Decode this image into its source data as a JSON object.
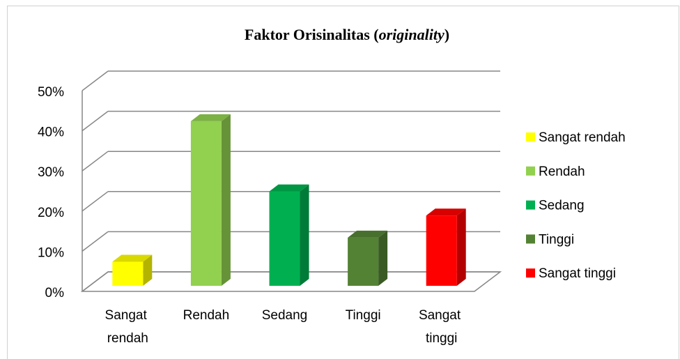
{
  "chart_data": {
    "type": "bar3d",
    "title": "Faktor Orisinalitas (originality)",
    "categories": [
      "Sangat rendah",
      "Rendah",
      "Sedang",
      "Tinggi",
      "Sangat tinggi"
    ],
    "values": [
      6,
      41,
      23.5,
      12,
      17.5
    ],
    "colors": [
      "#ffff00",
      "#92d050",
      "#00b050",
      "#548235",
      "#ff0000"
    ],
    "ylim": [
      0,
      50
    ],
    "yticks": [
      {
        "value": 0,
        "label": "0%"
      },
      {
        "value": 10,
        "label": "10%"
      },
      {
        "value": 20,
        "label": "20%"
      },
      {
        "value": 30,
        "label": "30%"
      },
      {
        "value": 40,
        "label": "40%"
      },
      {
        "value": 50,
        "label": "50%"
      }
    ],
    "grid": true,
    "legend": "right"
  }
}
